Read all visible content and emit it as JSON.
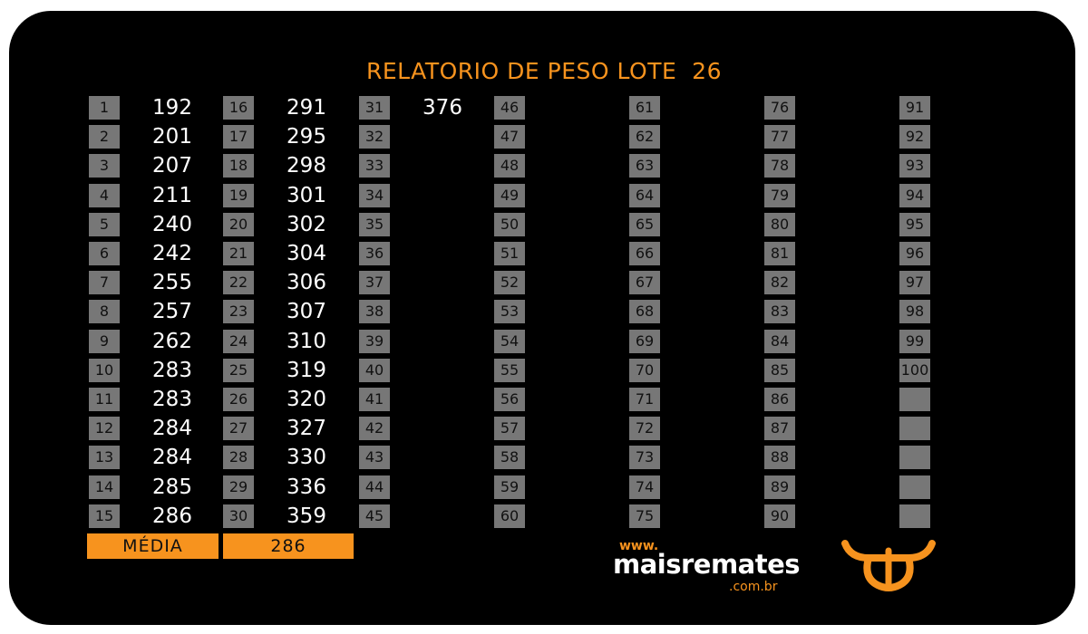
{
  "title": "RELATORIO DE PESO LOTE  26",
  "columns": [
    {
      "numbers": [
        "1",
        "2",
        "3",
        "4",
        "5",
        "6",
        "7",
        "8",
        "9",
        "10",
        "11",
        "12",
        "13",
        "14",
        "15"
      ],
      "values": [
        "192",
        "201",
        "207",
        "211",
        "240",
        "242",
        "255",
        "257",
        "262",
        "283",
        "283",
        "284",
        "284",
        "285",
        "286"
      ]
    },
    {
      "numbers": [
        "16",
        "17",
        "18",
        "19",
        "20",
        "21",
        "22",
        "23",
        "24",
        "25",
        "26",
        "27",
        "28",
        "29",
        "30"
      ],
      "values": [
        "291",
        "295",
        "298",
        "301",
        "302",
        "304",
        "306",
        "307",
        "310",
        "319",
        "320",
        "327",
        "330",
        "336",
        "359"
      ]
    },
    {
      "numbers": [
        "31",
        "32",
        "33",
        "34",
        "35",
        "36",
        "37",
        "38",
        "39",
        "40",
        "41",
        "42",
        "43",
        "44",
        "45"
      ],
      "values": [
        "376",
        "",
        "",
        "",
        "",
        "",
        "",
        "",
        "",
        "",
        "",
        "",
        "",
        "",
        ""
      ]
    },
    {
      "numbers": [
        "46",
        "47",
        "48",
        "49",
        "50",
        "51",
        "52",
        "53",
        "54",
        "55",
        "56",
        "57",
        "58",
        "59",
        "60"
      ],
      "values": [
        "",
        "",
        "",
        "",
        "",
        "",
        "",
        "",
        "",
        "",
        "",
        "",
        "",
        "",
        ""
      ]
    },
    {
      "numbers": [
        "61",
        "62",
        "63",
        "64",
        "65",
        "66",
        "67",
        "68",
        "69",
        "70",
        "71",
        "72",
        "73",
        "74",
        "75"
      ],
      "values": [
        "",
        "",
        "",
        "",
        "",
        "",
        "",
        "",
        "",
        "",
        "",
        "",
        "",
        "",
        ""
      ]
    },
    {
      "numbers": [
        "76",
        "77",
        "78",
        "79",
        "80",
        "81",
        "82",
        "83",
        "84",
        "85",
        "86",
        "87",
        "88",
        "89",
        "90"
      ],
      "values": [
        "",
        "",
        "",
        "",
        "",
        "",
        "",
        "",
        "",
        "",
        "",
        "",
        "",
        "",
        ""
      ]
    },
    {
      "numbers": [
        "91",
        "92",
        "93",
        "94",
        "95",
        "96",
        "97",
        "98",
        "99",
        "100",
        "",
        "",
        "",
        "",
        ""
      ],
      "values": [
        "",
        "",
        "",
        "",
        "",
        "",
        "",
        "",
        "",
        "",
        "",
        "",
        "",
        "",
        ""
      ]
    }
  ],
  "footer": {
    "label": "MÉDIA",
    "value": "286"
  },
  "brand": {
    "www": "www.",
    "name": "maisremates",
    "tld": ".com.br",
    "logo_icon": "bull-head-logo"
  },
  "colors": {
    "background": "#000000",
    "accent": "#f7931e",
    "number_box": "#777777",
    "value_text": "#ffffff"
  }
}
